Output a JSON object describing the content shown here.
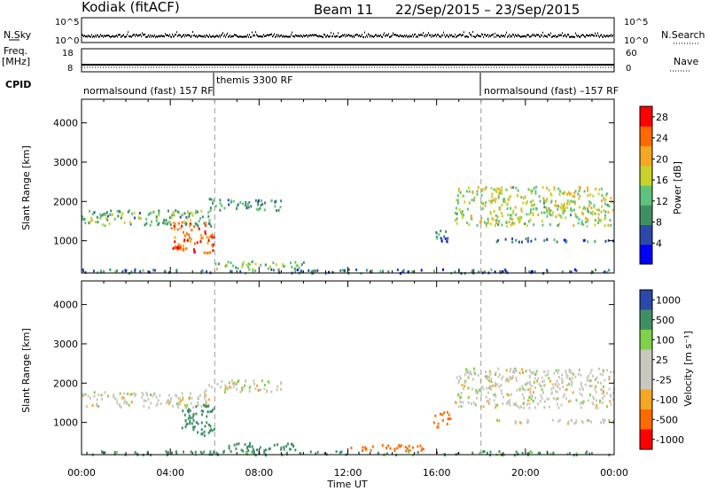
{
  "header": {
    "title": "Kodiak (fitACF)",
    "beam": "Beam 11",
    "daterange": "22/Sep/2015 – 23/Sep/2015"
  },
  "side_labels": {
    "nsky": "N.Sky",
    "nsearch": "N.Search",
    "freq": "Freq.",
    "freq_unit": "[MHz]",
    "nave": "Nave",
    "cpid": "CPID"
  },
  "noise_axis": {
    "left_ticks": [
      "10^5",
      "10^0"
    ],
    "right_ticks": [
      "10^5",
      "10^0"
    ]
  },
  "freq_axis": {
    "left_ticks": [
      "18",
      "8"
    ],
    "right_ticks": [
      "60",
      "0"
    ]
  },
  "cpid_segments": [
    {
      "label": "normalsound (fast) 157 RF"
    },
    {
      "label": "themis 3300 RF"
    },
    {
      "label": "normalsound (fast) –157 RF"
    }
  ],
  "colors": {
    "power_scale": [
      "#0000ff",
      "#2a49a8",
      "#3f8f65",
      "#5fc27a",
      "#c8d22a",
      "#f5a623",
      "#ff6a00",
      "#ff0000"
    ],
    "velocity_scale": [
      "#ff0000",
      "#ff6a00",
      "#f5a623",
      "#c8c8c0",
      "#c8c8c0",
      "#7fd04a",
      "#3f8f65",
      "#2a49a8"
    ]
  },
  "chart_data": [
    {
      "type": "heatmap",
      "name": "power",
      "xlabel": "Time UT",
      "ylabel": "Slant Range [km]",
      "x_ticks": [
        "00:00",
        "04:00",
        "08:00",
        "12:00",
        "16:00",
        "20:00",
        "00:00"
      ],
      "xlim_hours": [
        0,
        24
      ],
      "ylim_km": [
        180,
        4600
      ],
      "y_ticks": [
        1000,
        2000,
        3000,
        4000
      ],
      "colorbar": {
        "label": "Power [dB]",
        "ticks": [
          "4",
          "8",
          "12",
          "16",
          "20",
          "24",
          "28"
        ],
        "range": [
          0,
          30
        ]
      },
      "markers_hours": [
        6,
        18
      ],
      "echo_regions": [
        {
          "t0": 0.0,
          "t1": 5.8,
          "r0": 1400,
          "r1": 1800,
          "level": 12
        },
        {
          "t0": 4.0,
          "t1": 6.0,
          "r0": 700,
          "r1": 1500,
          "level": 24
        },
        {
          "t0": 5.5,
          "t1": 9.0,
          "r0": 1800,
          "r1": 2100,
          "level": 10
        },
        {
          "t0": 6.0,
          "t1": 10.0,
          "r0": 300,
          "r1": 500,
          "level": 14
        },
        {
          "t0": 15.8,
          "t1": 16.6,
          "r0": 1000,
          "r1": 1300,
          "level": 8
        },
        {
          "t0": 16.8,
          "t1": 24.0,
          "r0": 1400,
          "r1": 2400,
          "level": 16
        },
        {
          "t0": 18.5,
          "t1": 24.0,
          "r0": 1000,
          "r1": 1100,
          "level": 8
        },
        {
          "t0": 0.0,
          "t1": 24.0,
          "r0": 200,
          "r1": 300,
          "level": 8
        }
      ]
    },
    {
      "type": "heatmap",
      "name": "velocity",
      "xlabel": "Time UT",
      "ylabel": "Slant Range [km]",
      "x_ticks": [
        "00:00",
        "04:00",
        "08:00",
        "12:00",
        "16:00",
        "20:00",
        "00:00"
      ],
      "xlim_hours": [
        0,
        24
      ],
      "ylim_km": [
        180,
        4600
      ],
      "y_ticks": [
        1000,
        2000,
        3000,
        4000
      ],
      "colorbar": {
        "label": "Velocity [m s⁻¹]",
        "ticks": [
          "1000",
          "500",
          "100",
          "25",
          "-25",
          "-100",
          "-500",
          "-1000"
        ]
      },
      "markers_hours": [
        6,
        18
      ],
      "echo_regions": [
        {
          "t0": 0.0,
          "t1": 5.8,
          "r0": 1400,
          "r1": 1800,
          "velocity": 0
        },
        {
          "t0": 4.5,
          "t1": 6.0,
          "r0": 700,
          "r1": 1500,
          "velocity": 150
        },
        {
          "t0": 5.5,
          "t1": 9.0,
          "r0": 1800,
          "r1": 2100,
          "velocity": 0
        },
        {
          "t0": 6.5,
          "t1": 10.0,
          "r0": 300,
          "r1": 500,
          "velocity": 150
        },
        {
          "t0": 12.0,
          "t1": 15.5,
          "r0": 300,
          "r1": 450,
          "velocity": -150
        },
        {
          "t0": 15.8,
          "t1": 16.6,
          "r0": 900,
          "r1": 1300,
          "velocity": -150
        },
        {
          "t0": 16.8,
          "t1": 24.0,
          "r0": 1400,
          "r1": 2400,
          "velocity": 0
        },
        {
          "t0": 18.5,
          "t1": 24.0,
          "r0": 1000,
          "r1": 1100,
          "velocity": 0
        },
        {
          "t0": 0.0,
          "t1": 24.0,
          "r0": 200,
          "r1": 300,
          "velocity": 120
        }
      ]
    }
  ]
}
